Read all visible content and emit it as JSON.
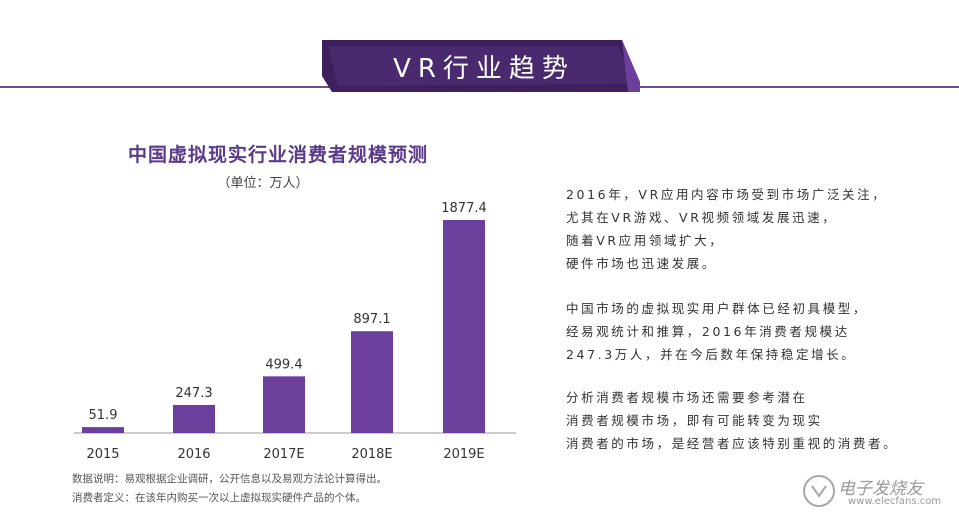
{
  "header": {
    "title": "VR行业趋势",
    "accent_color": "#3d1f5c"
  },
  "chart_data": {
    "type": "bar",
    "title": "中国虚拟现实行业消费者规模预测",
    "subtitle": "（单位：万人）",
    "categories": [
      "2015",
      "2016",
      "2017E",
      "2018E",
      "2019E"
    ],
    "values": [
      51.9,
      247.3,
      499.4,
      897.1,
      1877.4
    ],
    "value_labels": [
      "51.9",
      "247.3",
      "499.4",
      "897.1",
      "1877.4"
    ],
    "ylim": [
      0,
      1877.4
    ],
    "bar_color": "#6b3f9b",
    "grid": false,
    "legend": "none"
  },
  "notes": {
    "source": "数据说明：易观根据企业调研，公开信息以及易观方法论计算得出。",
    "definition": "消费者定义：在该年内购买一次以上虚拟现实硬件产品的个体。"
  },
  "paragraphs": [
    [
      "2016年，VR应用内容市场受到市场广泛关注，",
      "尤其在VR游戏、VR视频领域发展迅速，",
      "随着VR应用领域扩大，",
      "硬件市场也迅速发展。"
    ],
    [
      "中国市场的虚拟现实用户群体已经初具模型，",
      "经易观统计和推算，2016年消费者规模达",
      "247.3万人，并在今后数年保持稳定增长。"
    ],
    [
      "分析消费者规模市场还需要参考潜在",
      "消费者规模市场，即有可能转变为现实",
      "消费者的市场，是经营者应该特别重视的消费者。"
    ]
  ],
  "watermark": {
    "text": "电子发烧友",
    "url": "www.elecfans.com"
  }
}
